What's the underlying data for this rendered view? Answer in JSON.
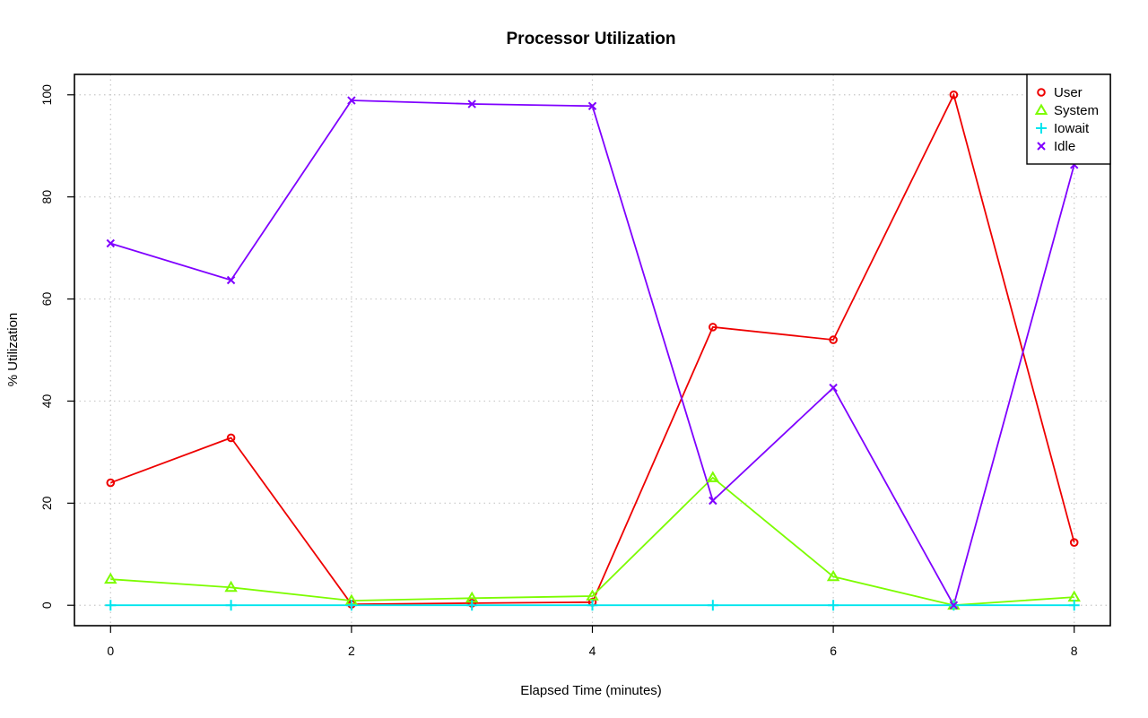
{
  "chart_data": {
    "type": "line",
    "title": "Processor Utilization",
    "xlabel": "Elapsed Time (minutes)",
    "ylabel": "% Utilization",
    "xlim": [
      -0.3,
      8.3
    ],
    "ylim": [
      -4,
      104
    ],
    "x_ticks": [
      0,
      2,
      4,
      6,
      8
    ],
    "y_ticks": [
      0,
      20,
      40,
      60,
      80,
      100
    ],
    "grid": true,
    "legend_position": "top-right",
    "x": [
      0,
      1,
      2,
      3,
      4,
      5,
      6,
      7,
      8
    ],
    "series": [
      {
        "name": "User",
        "color": "#ee0000",
        "marker": "circle",
        "values": [
          24,
          32.8,
          0.2,
          0.4,
          0.6,
          54.5,
          52,
          100,
          12.3
        ]
      },
      {
        "name": "System",
        "color": "#7cfc00",
        "marker": "triangle",
        "values": [
          5.1,
          3.5,
          0.9,
          1.4,
          1.8,
          25,
          5.6,
          0,
          1.6
        ]
      },
      {
        "name": "Iowait",
        "color": "#00e5ee",
        "marker": "plus",
        "values": [
          0,
          0,
          0,
          0,
          0,
          0,
          0,
          0,
          0
        ]
      },
      {
        "name": "Idle",
        "color": "#7f00ff",
        "marker": "cross",
        "values": [
          70.9,
          63.7,
          98.9,
          98.2,
          97.8,
          20.5,
          42.6,
          0,
          86.3
        ]
      }
    ]
  }
}
